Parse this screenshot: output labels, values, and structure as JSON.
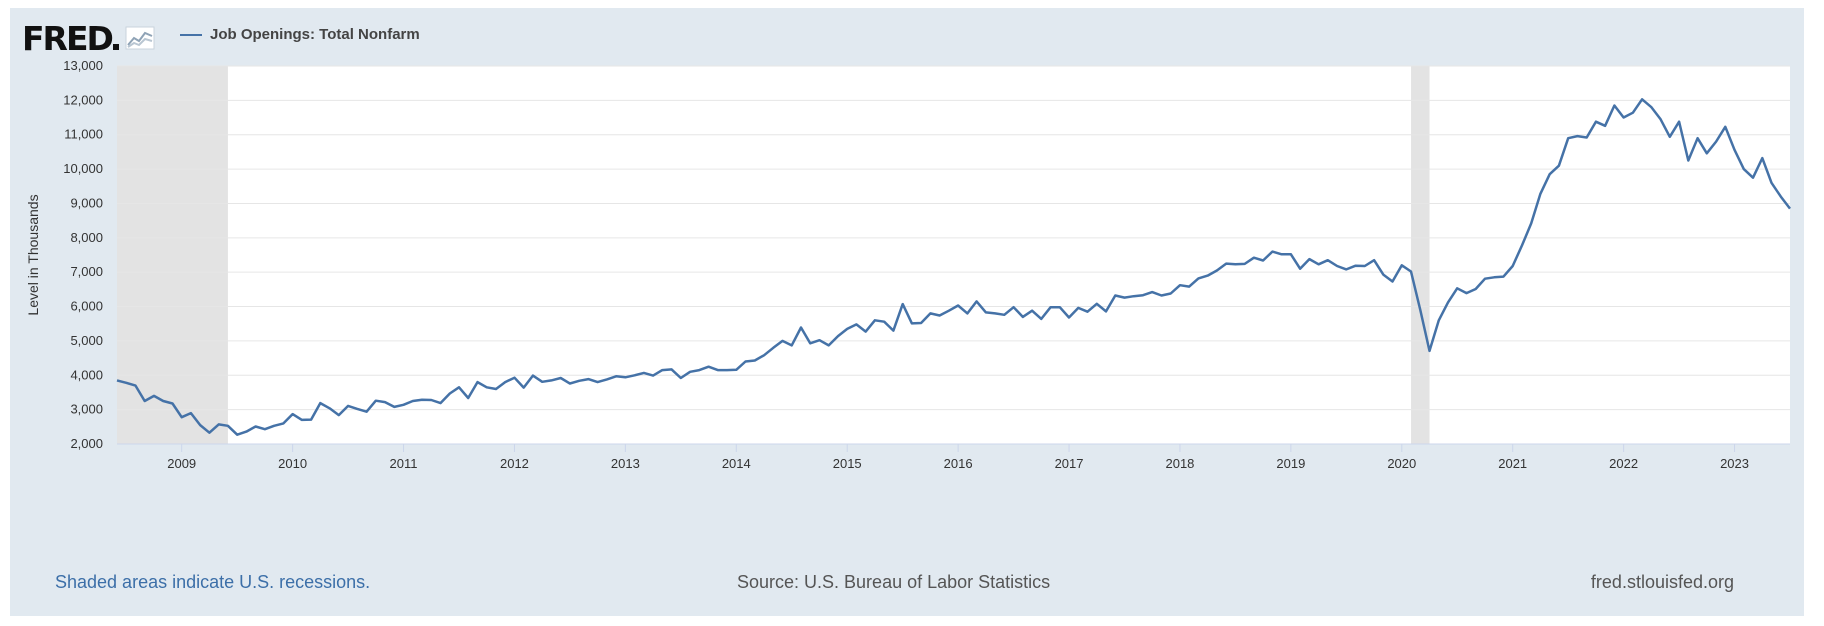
{
  "header": {
    "logo_text": "FRED",
    "legend_label": "Job Openings: Total Nonfarm"
  },
  "footer": {
    "recession_note": "Shaded areas indicate U.S. recessions.",
    "source": "Source: U.S. Bureau of Labor Statistics",
    "site": "fred.stlouisfed.org"
  },
  "colors": {
    "line": "#4572a7",
    "recession_shade": "#e3e3e3",
    "background": "#e1e9f0",
    "plot": "#ffffff",
    "grid": "#e6e6e6"
  },
  "chart_data": {
    "type": "line",
    "title": "",
    "ylabel": "Level in Thousands",
    "xlabel": "",
    "ylim": [
      2000,
      13000
    ],
    "yticks": [
      2000,
      3000,
      4000,
      5000,
      6000,
      7000,
      8000,
      9000,
      10000,
      11000,
      12000,
      13000
    ],
    "ytick_labels": [
      "2,000",
      "3,000",
      "4,000",
      "5,000",
      "6,000",
      "7,000",
      "8,000",
      "9,000",
      "10,000",
      "11,000",
      "12,000",
      "13,000"
    ],
    "xlim": [
      "2008-06",
      "2023-07"
    ],
    "xticks": [
      "2009",
      "2010",
      "2011",
      "2012",
      "2013",
      "2014",
      "2015",
      "2016",
      "2017",
      "2018",
      "2019",
      "2020",
      "2021",
      "2022",
      "2023"
    ],
    "grid": true,
    "legend": "top-left",
    "recessions": [
      {
        "start": "2008-06",
        "end": "2009-06"
      },
      {
        "start": "2020-02",
        "end": "2020-04"
      }
    ],
    "series": [
      {
        "name": "Job Openings: Total Nonfarm",
        "x": [
          "2008-06",
          "2008-07",
          "2008-08",
          "2008-09",
          "2008-10",
          "2008-11",
          "2008-12",
          "2009-01",
          "2009-02",
          "2009-03",
          "2009-04",
          "2009-05",
          "2009-06",
          "2009-07",
          "2009-08",
          "2009-09",
          "2009-10",
          "2009-11",
          "2009-12",
          "2010-01",
          "2010-02",
          "2010-03",
          "2010-04",
          "2010-05",
          "2010-06",
          "2010-07",
          "2010-08",
          "2010-09",
          "2010-10",
          "2010-11",
          "2010-12",
          "2011-01",
          "2011-02",
          "2011-03",
          "2011-04",
          "2011-05",
          "2011-06",
          "2011-07",
          "2011-08",
          "2011-09",
          "2011-10",
          "2011-11",
          "2011-12",
          "2012-01",
          "2012-02",
          "2012-03",
          "2012-04",
          "2012-05",
          "2012-06",
          "2012-07",
          "2012-08",
          "2012-09",
          "2012-10",
          "2012-11",
          "2012-12",
          "2013-01",
          "2013-02",
          "2013-03",
          "2013-04",
          "2013-05",
          "2013-06",
          "2013-07",
          "2013-08",
          "2013-09",
          "2013-10",
          "2013-11",
          "2013-12",
          "2014-01",
          "2014-02",
          "2014-03",
          "2014-04",
          "2014-05",
          "2014-06",
          "2014-07",
          "2014-08",
          "2014-09",
          "2014-10",
          "2014-11",
          "2014-12",
          "2015-01",
          "2015-02",
          "2015-03",
          "2015-04",
          "2015-05",
          "2015-06",
          "2015-07",
          "2015-08",
          "2015-09",
          "2015-10",
          "2015-11",
          "2015-12",
          "2016-01",
          "2016-02",
          "2016-03",
          "2016-04",
          "2016-05",
          "2016-06",
          "2016-07",
          "2016-08",
          "2016-09",
          "2016-10",
          "2016-11",
          "2016-12",
          "2017-01",
          "2017-02",
          "2017-03",
          "2017-04",
          "2017-05",
          "2017-06",
          "2017-07",
          "2017-08",
          "2017-09",
          "2017-10",
          "2017-11",
          "2017-12",
          "2018-01",
          "2018-02",
          "2018-03",
          "2018-04",
          "2018-05",
          "2018-06",
          "2018-07",
          "2018-08",
          "2018-09",
          "2018-10",
          "2018-11",
          "2018-12",
          "2019-01",
          "2019-02",
          "2019-03",
          "2019-04",
          "2019-05",
          "2019-06",
          "2019-07",
          "2019-08",
          "2019-09",
          "2019-10",
          "2019-11",
          "2019-12",
          "2020-01",
          "2020-02",
          "2020-03",
          "2020-04",
          "2020-05",
          "2020-06",
          "2020-07",
          "2020-08",
          "2020-09",
          "2020-10",
          "2020-11",
          "2020-12",
          "2021-01",
          "2021-02",
          "2021-03",
          "2021-04",
          "2021-05",
          "2021-06",
          "2021-07",
          "2021-08",
          "2021-09",
          "2021-10",
          "2021-11",
          "2021-12",
          "2022-01",
          "2022-02",
          "2022-03",
          "2022-04",
          "2022-05",
          "2022-06",
          "2022-07",
          "2022-08",
          "2022-09",
          "2022-10",
          "2022-11",
          "2022-12",
          "2023-01",
          "2023-02",
          "2023-03",
          "2023-04",
          "2023-05",
          "2023-06",
          "2023-07"
        ],
        "values": [
          3850,
          3780,
          3700,
          3250,
          3400,
          3250,
          3180,
          2780,
          2900,
          2550,
          2330,
          2570,
          2530,
          2270,
          2360,
          2510,
          2430,
          2530,
          2600,
          2870,
          2700,
          2710,
          3190,
          3040,
          2840,
          3110,
          3020,
          2940,
          3260,
          3220,
          3080,
          3140,
          3250,
          3290,
          3280,
          3190,
          3470,
          3650,
          3340,
          3800,
          3650,
          3600,
          3800,
          3930,
          3640,
          3990,
          3810,
          3850,
          3920,
          3760,
          3840,
          3890,
          3800,
          3880,
          3970,
          3940,
          4000,
          4070,
          3990,
          4150,
          4170,
          3920,
          4100,
          4150,
          4250,
          4150,
          4150,
          4160,
          4400,
          4430,
          4580,
          4800,
          5000,
          4870,
          5390,
          4930,
          5020,
          4870,
          5140,
          5350,
          5480,
          5270,
          5600,
          5560,
          5300,
          6070,
          5510,
          5520,
          5800,
          5740,
          5880,
          6030,
          5800,
          6150,
          5830,
          5800,
          5760,
          5980,
          5700,
          5880,
          5640,
          5980,
          5980,
          5680,
          5960,
          5850,
          6080,
          5860,
          6320,
          6260,
          6300,
          6330,
          6420,
          6320,
          6380,
          6620,
          6580,
          6820,
          6900,
          7050,
          7250,
          7230,
          7240,
          7420,
          7340,
          7600,
          7520,
          7520,
          7100,
          7380,
          7230,
          7350,
          7180,
          7080,
          7190,
          7180,
          7350,
          6930,
          6730,
          7200,
          7020,
          5900,
          4710,
          5600,
          6120,
          6530,
          6390,
          6510,
          6810,
          6850,
          6870,
          7180,
          7780,
          8420,
          9280,
          9850,
          10100,
          10900,
          10960,
          10920,
          11380,
          11260,
          11850,
          11500,
          11640,
          12030,
          11800,
          11450,
          10940,
          11380,
          10250,
          10900,
          10460,
          10800,
          11230,
          10560,
          10000,
          9750,
          10320,
          9600,
          9200,
          8850
        ]
      }
    ]
  }
}
